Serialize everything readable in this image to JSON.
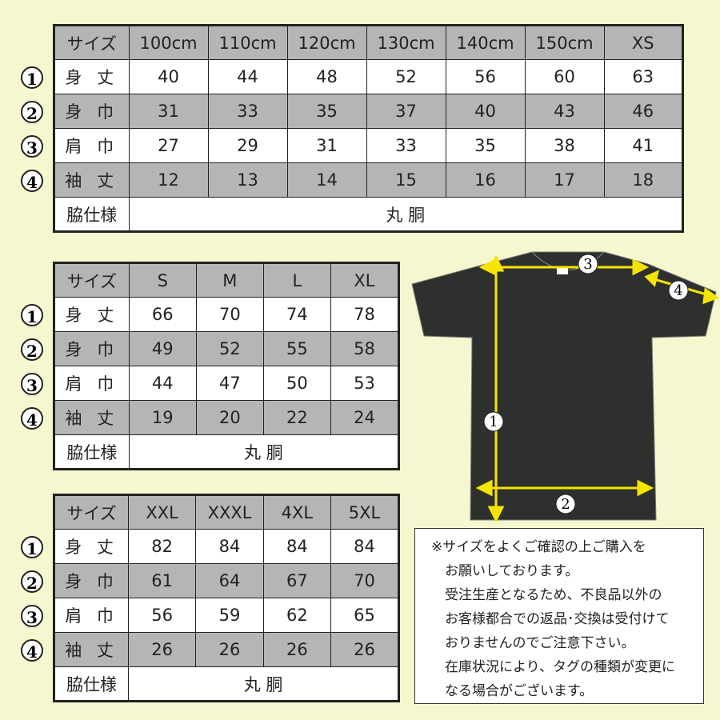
{
  "row_labels": [
    "サイズ",
    "身 丈",
    "身 巾",
    "肩 巾",
    "袖 丈",
    "脇仕様"
  ],
  "row_markers": [
    "①",
    "②",
    "③",
    "④"
  ],
  "tables": [
    {
      "sizes": [
        "100cm",
        "110cm",
        "120cm",
        "130cm",
        "140cm",
        "150cm",
        "XS"
      ],
      "rows": [
        [
          "40",
          "44",
          "48",
          "52",
          "56",
          "60",
          "63"
        ],
        [
          "31",
          "33",
          "35",
          "37",
          "40",
          "43",
          "46"
        ],
        [
          "27",
          "29",
          "31",
          "33",
          "35",
          "38",
          "41"
        ],
        [
          "12",
          "13",
          "14",
          "15",
          "16",
          "17",
          "18"
        ]
      ],
      "side_spec": "丸 胴"
    },
    {
      "sizes": [
        "S",
        "M",
        "L",
        "XL"
      ],
      "rows": [
        [
          "66",
          "70",
          "74",
          "78"
        ],
        [
          "49",
          "52",
          "55",
          "58"
        ],
        [
          "44",
          "47",
          "50",
          "53"
        ],
        [
          "19",
          "20",
          "22",
          "24"
        ]
      ],
      "side_spec": "丸 胴"
    },
    {
      "sizes": [
        "XXL",
        "XXXL",
        "4XL",
        "5XL"
      ],
      "rows": [
        [
          "82",
          "84",
          "84",
          "84"
        ],
        [
          "61",
          "64",
          "67",
          "70"
        ],
        [
          "56",
          "59",
          "62",
          "65"
        ],
        [
          "26",
          "26",
          "26",
          "26"
        ]
      ],
      "side_spec": "丸 胴"
    }
  ],
  "diagram": {
    "markers": [
      "1",
      "2",
      "3",
      "4"
    ],
    "shirt_color": "#2e302e",
    "arrow_color": "#f5e400"
  },
  "note": [
    "※サイズをよくご確認の上ご購入を",
    "　お願いしております。",
    "　受注生産となるため、不良品以外の",
    "　お客様都合での返品･交換は受付けて",
    "　おりませんのでご注意下さい。",
    "　在庫状況により、タグの種類が変更に",
    "　なる場合がございます。"
  ]
}
